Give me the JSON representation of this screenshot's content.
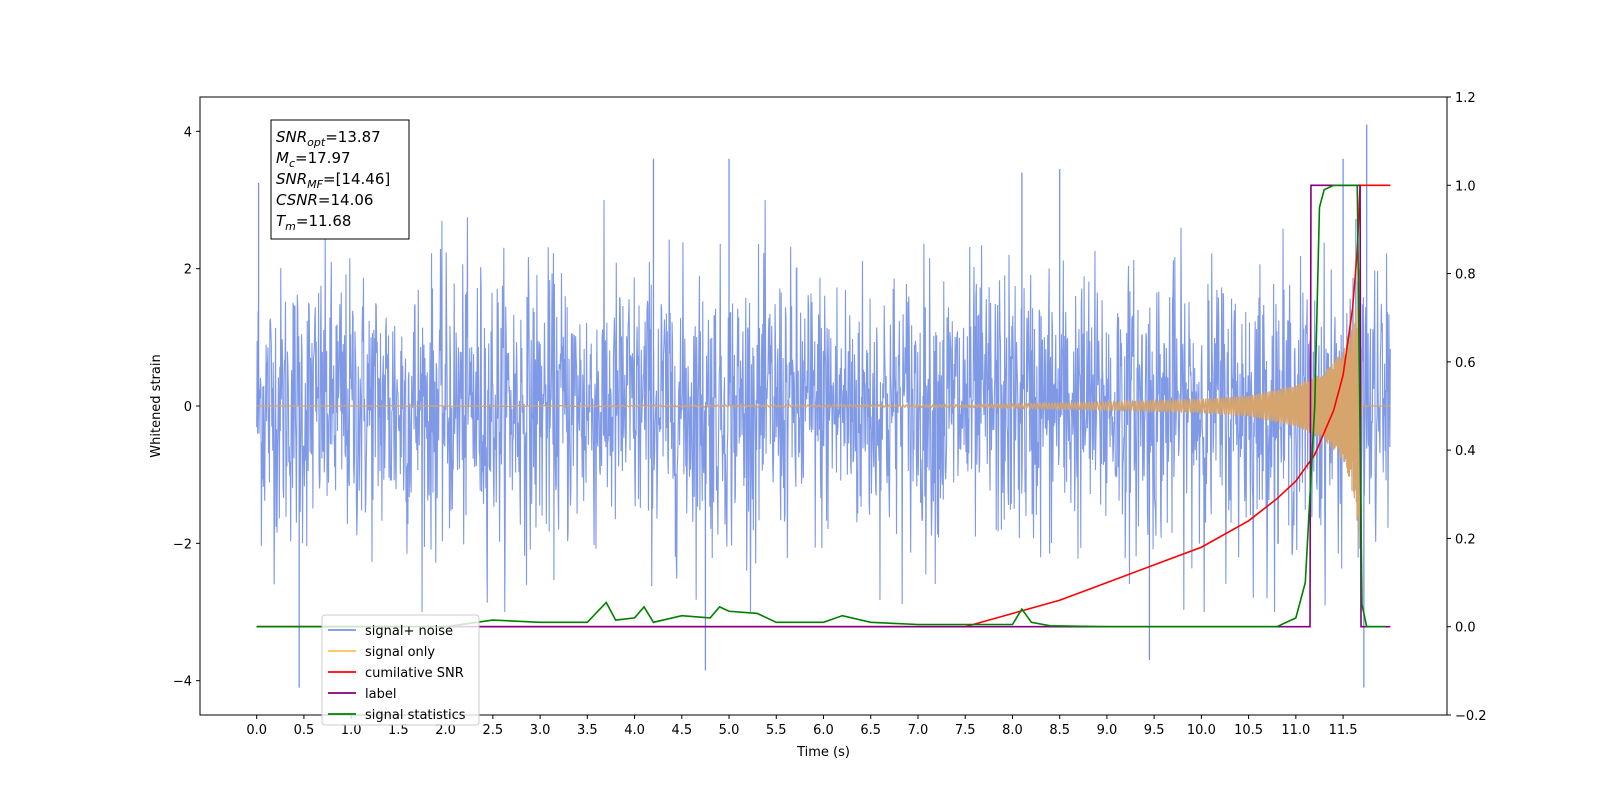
{
  "chart_data": {
    "type": "line",
    "xlabel": "Time (s)",
    "ylabel": "Whitened strain",
    "xlim": [
      -0.6,
      12.6
    ],
    "ylim_left": [
      -4.5,
      4.5
    ],
    "ylim_right": [
      -0.2,
      1.2
    ],
    "x_ticks": [
      0.0,
      0.5,
      1.0,
      1.5,
      2.0,
      2.5,
      3.0,
      3.5,
      4.0,
      4.5,
      5.0,
      5.5,
      6.0,
      6.5,
      7.0,
      7.5,
      8.0,
      8.5,
      9.0,
      9.5,
      10.0,
      10.5,
      11.0,
      11.5
    ],
    "x_tick_labels": [
      "0.0",
      "0.5",
      "1.0",
      "1.5",
      "2.0",
      "2.5",
      "3.0",
      "3.5",
      "4.0",
      "4.5",
      "5.0",
      "5.5",
      "6.0",
      "6.5",
      "7.0",
      "7.5",
      "8.0",
      "8.5",
      "9.0",
      "9.5",
      "10.0",
      "10.5",
      "11.0",
      "11.5"
    ],
    "y_ticks_left": [
      -4,
      -2,
      0,
      2,
      4
    ],
    "y_tick_labels_left": [
      "−4",
      "−2",
      "0",
      "2",
      "4"
    ],
    "y_ticks_right": [
      -0.2,
      0.0,
      0.2,
      0.4,
      0.6,
      0.8,
      1.0,
      1.2
    ],
    "y_tick_labels_right": [
      "−0.2",
      "0.0",
      "0.2",
      "0.4",
      "0.6",
      "0.8",
      "1.0",
      "1.2"
    ],
    "info_box": {
      "lines": [
        {
          "base": "SNR",
          "sub": "opt",
          "value": "=13.87"
        },
        {
          "base": "M",
          "sub": "c",
          "value": "=17.97"
        },
        {
          "base": "SNR",
          "sub": "MF",
          "value": "=[14.46]"
        },
        {
          "base": "CSNR",
          "sub": "",
          "value": "=14.06"
        },
        {
          "base": "T",
          "sub": "m",
          "value": "=11.68"
        }
      ]
    },
    "legend": {
      "placement": "lower-left",
      "entries": [
        {
          "label": "signal+ noise",
          "color": "#7893e6"
        },
        {
          "label": "signal only",
          "color": "#ffc15a"
        },
        {
          "label": "cumilative SNR",
          "color": "#ff0000"
        },
        {
          "label": "label",
          "color": "#800080"
        },
        {
          "label": "signal statistics",
          "color": "#008000"
        }
      ]
    },
    "series": [
      {
        "name": "signal+ noise",
        "axis": "left",
        "color": "#7893e6",
        "x_range": [
          0.0,
          12.0
        ],
        "envelope_typical": 1.8,
        "spikes": [
          [
            0.02,
            3.25
          ],
          [
            0.45,
            -4.1
          ],
          [
            4.2,
            3.6
          ],
          [
            4.75,
            -3.85
          ],
          [
            5.0,
            3.6
          ],
          [
            8.1,
            3.4
          ],
          [
            8.5,
            3.45
          ],
          [
            9.45,
            -3.7
          ],
          [
            11.5,
            3.6
          ],
          [
            11.75,
            4.1
          ],
          [
            11.72,
            -4.1
          ]
        ]
      },
      {
        "name": "signal only",
        "axis": "left",
        "color": "#d6a56e",
        "x_range": [
          0.0,
          12.0
        ],
        "amplitude": [
          [
            0.0,
            0.0
          ],
          [
            7.5,
            0.02
          ],
          [
            9.0,
            0.06
          ],
          [
            10.0,
            0.1
          ],
          [
            10.5,
            0.15
          ],
          [
            11.0,
            0.3
          ],
          [
            11.3,
            0.5
          ],
          [
            11.5,
            0.8
          ],
          [
            11.6,
            1.2
          ],
          [
            11.65,
            1.7
          ],
          [
            11.68,
            2.2
          ],
          [
            11.7,
            0.0
          ],
          [
            12.0,
            0.0
          ]
        ]
      },
      {
        "name": "cumilative SNR",
        "axis": "right",
        "color": "#ff0000",
        "x": [
          0.0,
          7.5,
          8.0,
          8.5,
          9.0,
          9.5,
          10.0,
          10.5,
          10.8,
          11.0,
          11.2,
          11.4,
          11.5,
          11.6,
          11.65,
          11.68,
          12.0
        ],
        "y": [
          0.0,
          0.0,
          0.03,
          0.06,
          0.1,
          0.14,
          0.18,
          0.24,
          0.29,
          0.33,
          0.39,
          0.49,
          0.57,
          0.72,
          0.85,
          1.0,
          1.0
        ]
      },
      {
        "name": "label",
        "axis": "right",
        "color": "#800080",
        "x": [
          0.0,
          11.15,
          11.16,
          11.68,
          11.69,
          12.0
        ],
        "y": [
          0.0,
          0.0,
          1.0,
          1.0,
          0.0,
          0.0
        ]
      },
      {
        "name": "signal statistics",
        "axis": "right",
        "color": "#008000",
        "x": [
          0.0,
          2.0,
          2.5,
          3.0,
          3.5,
          3.7,
          3.8,
          4.0,
          4.1,
          4.2,
          4.5,
          4.8,
          4.9,
          5.0,
          5.3,
          5.5,
          6.0,
          6.2,
          6.5,
          7.0,
          7.5,
          8.0,
          8.1,
          8.2,
          8.4,
          9.0,
          10.0,
          10.8,
          11.0,
          11.1,
          11.2,
          11.25,
          11.3,
          11.4,
          11.6,
          11.65,
          11.7,
          11.75,
          11.9,
          11.95
        ],
        "y": [
          0.0,
          0.0,
          0.015,
          0.01,
          0.01,
          0.055,
          0.015,
          0.02,
          0.045,
          0.01,
          0.025,
          0.02,
          0.045,
          0.035,
          0.03,
          0.01,
          0.01,
          0.025,
          0.01,
          0.005,
          0.005,
          0.005,
          0.04,
          0.01,
          0.002,
          0.0,
          0.0,
          0.0,
          0.02,
          0.1,
          0.5,
          0.95,
          0.99,
          1.0,
          1.0,
          1.0,
          0.05,
          0.0,
          0.0,
          0.0
        ]
      }
    ]
  }
}
